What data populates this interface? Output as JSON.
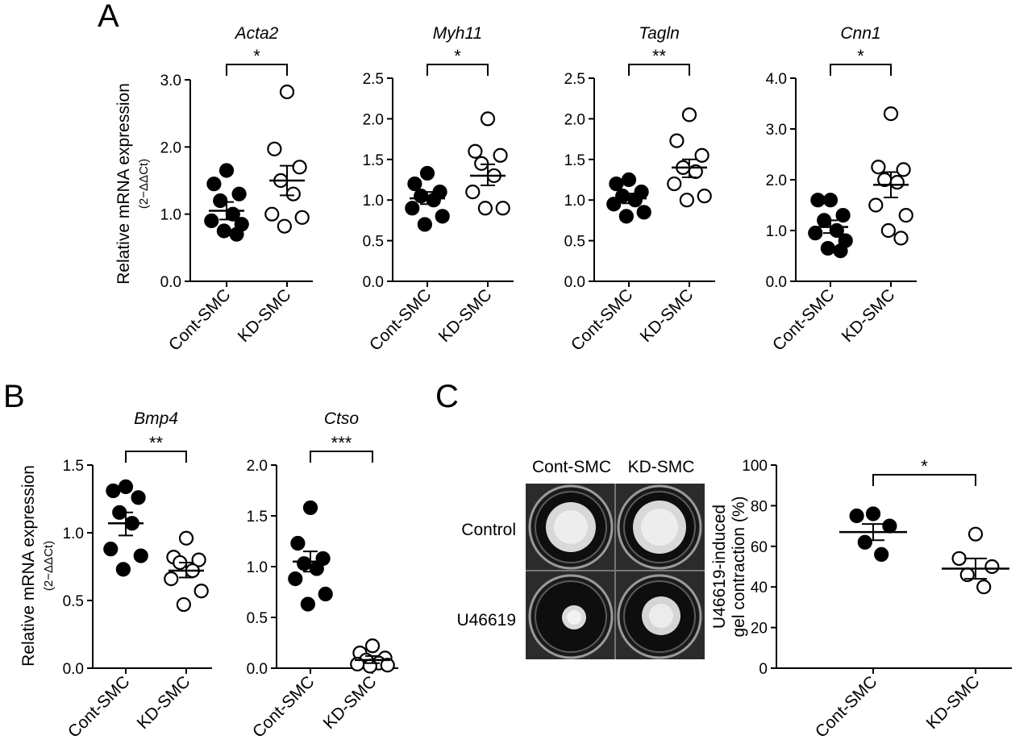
{
  "panels": {
    "A": "A",
    "B": "B",
    "C": "C"
  },
  "ylabel_expression": "Relative mRNA expression",
  "ylabel_expression_sub": "(2−ΔΔCt)",
  "photo": {
    "col_labels": [
      "Cont-SMC",
      "KD-SMC"
    ],
    "row_labels": [
      "Control",
      "U46619"
    ]
  },
  "colors": {
    "cont_fill": "#000000",
    "kd_fill": "#ffffff",
    "stroke": "#000000",
    "photo_bg": "#2b2b2b"
  },
  "chart_data": [
    {
      "id": "acta2",
      "type": "scatter",
      "title": "Acta2",
      "categories": [
        "Cont-SMC",
        "KD-SMC"
      ],
      "ylim": [
        0,
        3.0
      ],
      "yticks": [
        "0.0",
        "1.0",
        "2.0",
        "3.0"
      ],
      "significance": "*",
      "series": [
        {
          "name": "Cont-SMC",
          "filled": true,
          "values": [
            1.65,
            1.45,
            1.3,
            1.2,
            1.0,
            0.9,
            0.85,
            0.75,
            0.7
          ],
          "mean": 1.05,
          "sem_low": 0.92,
          "sem_high": 1.18
        },
        {
          "name": "KD-SMC",
          "filled": false,
          "values": [
            2.82,
            1.97,
            1.7,
            1.5,
            1.3,
            1.0,
            0.95,
            0.82
          ],
          "mean": 1.5,
          "sem_low": 1.28,
          "sem_high": 1.72
        }
      ]
    },
    {
      "id": "myh11",
      "type": "scatter",
      "title": "Myh11",
      "categories": [
        "Cont-SMC",
        "KD-SMC"
      ],
      "ylim": [
        0,
        2.5
      ],
      "yticks": [
        "0.0",
        "0.5",
        "1.0",
        "1.5",
        "2.0",
        "2.5"
      ],
      "significance": "*",
      "series": [
        {
          "name": "Cont-SMC",
          "filled": true,
          "values": [
            1.33,
            1.2,
            1.1,
            1.05,
            1.0,
            0.9,
            0.8,
            0.7
          ],
          "mean": 1.02,
          "sem_low": 0.95,
          "sem_high": 1.1
        },
        {
          "name": "KD-SMC",
          "filled": false,
          "values": [
            2.0,
            1.6,
            1.55,
            1.45,
            1.3,
            1.1,
            0.9,
            0.9
          ],
          "mean": 1.3,
          "sem_low": 1.18,
          "sem_high": 1.44
        }
      ]
    },
    {
      "id": "tagln",
      "type": "scatter",
      "title": "Tagln",
      "categories": [
        "Cont-SMC",
        "KD-SMC"
      ],
      "ylim": [
        0,
        2.5
      ],
      "yticks": [
        "0.0",
        "0.5",
        "1.0",
        "1.5",
        "2.0",
        "2.5"
      ],
      "significance": "**",
      "series": [
        {
          "name": "Cont-SMC",
          "filled": true,
          "values": [
            1.25,
            1.2,
            1.1,
            1.05,
            1.0,
            0.95,
            0.85,
            0.8
          ],
          "mean": 1.02,
          "sem_low": 0.96,
          "sem_high": 1.08
        },
        {
          "name": "KD-SMC",
          "filled": false,
          "values": [
            2.05,
            1.73,
            1.55,
            1.4,
            1.35,
            1.2,
            1.05,
            1.0
          ],
          "mean": 1.4,
          "sem_low": 1.28,
          "sem_high": 1.5
        }
      ]
    },
    {
      "id": "cnn1",
      "type": "scatter",
      "title": "Cnn1",
      "categories": [
        "Cont-SMC",
        "KD-SMC"
      ],
      "ylim": [
        0,
        4.0
      ],
      "yticks": [
        "0.0",
        "1.0",
        "2.0",
        "3.0",
        "4.0"
      ],
      "significance": "*",
      "series": [
        {
          "name": "Cont-SMC",
          "filled": true,
          "values": [
            1.6,
            1.6,
            1.3,
            1.2,
            1.0,
            0.95,
            0.8,
            0.65,
            0.6
          ],
          "mean": 1.07,
          "sem_low": 0.95,
          "sem_high": 1.2
        },
        {
          "name": "KD-SMC",
          "filled": false,
          "values": [
            3.3,
            2.25,
            2.2,
            2.0,
            1.95,
            1.5,
            1.3,
            1.0,
            0.85
          ],
          "mean": 1.9,
          "sem_low": 1.65,
          "sem_high": 2.15
        }
      ]
    },
    {
      "id": "bmp4",
      "type": "scatter",
      "title": "Bmp4",
      "categories": [
        "Cont-SMC",
        "KD-SMC"
      ],
      "ylim": [
        0,
        1.5
      ],
      "yticks": [
        "0.0",
        "0.5",
        "1.0",
        "1.5"
      ],
      "significance": "**",
      "series": [
        {
          "name": "Cont-SMC",
          "filled": true,
          "values": [
            1.34,
            1.31,
            1.26,
            1.15,
            1.07,
            0.88,
            0.83,
            0.73
          ],
          "mean": 1.07,
          "sem_low": 0.98,
          "sem_high": 1.15
        },
        {
          "name": "KD-SMC",
          "filled": false,
          "values": [
            0.96,
            0.82,
            0.8,
            0.78,
            0.72,
            0.66,
            0.57,
            0.47
          ],
          "mean": 0.72,
          "sem_low": 0.67,
          "sem_high": 0.78
        }
      ]
    },
    {
      "id": "ctso",
      "type": "scatter",
      "title": "Ctso",
      "categories": [
        "Cont-SMC",
        "KD-SMC"
      ],
      "ylim": [
        0,
        2.0
      ],
      "yticks": [
        "0.0",
        "0.5",
        "1.0",
        "1.5",
        "2.0"
      ],
      "significance": "***",
      "series": [
        {
          "name": "Cont-SMC",
          "filled": true,
          "values": [
            1.58,
            1.23,
            1.08,
            1.03,
            0.98,
            0.88,
            0.73,
            0.63
          ],
          "mean": 1.05,
          "sem_low": 0.95,
          "sem_high": 1.15
        },
        {
          "name": "KD-SMC",
          "filled": false,
          "values": [
            0.22,
            0.15,
            0.1,
            0.08,
            0.05,
            0.04,
            0.03,
            0.02
          ],
          "mean": 0.08,
          "sem_low": 0.05,
          "sem_high": 0.12
        }
      ]
    },
    {
      "id": "gel",
      "type": "scatter",
      "title": "",
      "ylabel": "U46619-induced",
      "ylabel2": "gel contraction (%)",
      "categories": [
        "Cont-SMC",
        "KD-SMC"
      ],
      "ylim": [
        0,
        100
      ],
      "yticks": [
        "0",
        "20",
        "40",
        "60",
        "80",
        "100"
      ],
      "significance": "*",
      "series": [
        {
          "name": "Cont-SMC",
          "filled": true,
          "values": [
            76,
            75,
            70,
            62,
            56
          ],
          "mean": 67,
          "sem_low": 63,
          "sem_high": 71
        },
        {
          "name": "KD-SMC",
          "filled": false,
          "values": [
            66,
            54,
            50,
            46,
            40
          ],
          "mean": 49,
          "sem_low": 44,
          "sem_high": 54
        }
      ]
    }
  ]
}
